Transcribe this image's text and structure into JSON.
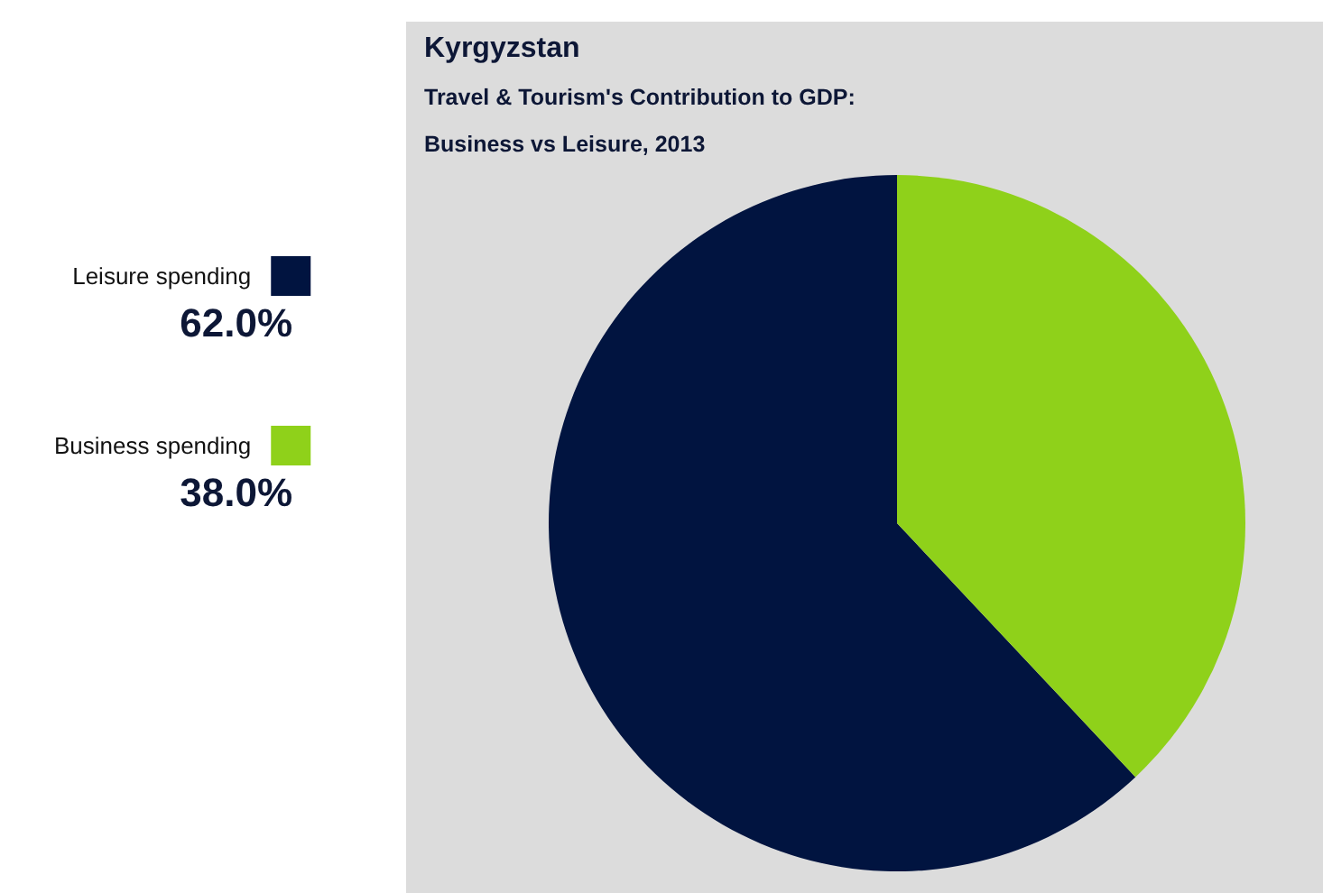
{
  "chart_data": {
    "type": "pie",
    "title": "Kyrgyzstan",
    "subtitle": "Travel & Tourism's Contribution to GDP:\nBusiness vs Leisure, 2013",
    "categories": [
      "Leisure spending",
      "Business spending"
    ],
    "values": [
      62,
      38
    ],
    "colors": [
      "#011440",
      "#8fd11a"
    ],
    "value_labels": [
      "62.0%",
      "38.0%"
    ],
    "legend": "left"
  }
}
